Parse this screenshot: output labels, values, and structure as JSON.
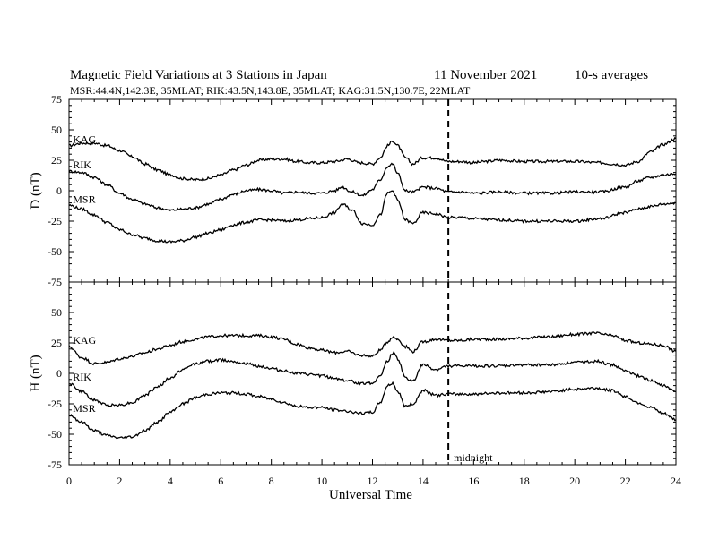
{
  "title_left": "Magnetic Field Variations at 3 Stations in Japan",
  "title_date": "11 November 2021",
  "title_right": "10-s averages",
  "subtitle": "MSR:44.4N,142.3E, 35MLAT;  RIK:43.5N,143.8E, 35MLAT;  KAG:31.5N,130.7E, 22MLAT",
  "chart_data": [
    {
      "type": "line",
      "ylabel": "D (nT)",
      "xlim": [
        0,
        24
      ],
      "ylim": [
        -75,
        75
      ],
      "yticks": [
        -75,
        -50,
        -25,
        0,
        25,
        50,
        75
      ],
      "xticks": [
        0,
        2,
        4,
        6,
        8,
        10,
        12,
        14,
        16,
        18,
        20,
        22,
        24
      ],
      "series": [
        {
          "name": "KAG",
          "x": [
            0,
            0.5,
            1,
            1.5,
            2,
            2.5,
            3,
            3.5,
            4,
            4.5,
            5,
            5.5,
            6,
            6.5,
            7,
            7.5,
            8,
            8.5,
            9,
            9.5,
            10,
            10.5,
            11,
            11.5,
            12,
            12.3,
            12.6,
            12.8,
            13,
            13.3,
            13.6,
            14,
            14.5,
            15,
            15.5,
            16,
            16.5,
            17,
            18,
            19,
            20,
            21,
            21.5,
            22,
            22.5,
            23,
            23.5,
            24
          ],
          "y": [
            37,
            39,
            39,
            37,
            33,
            28,
            22,
            17,
            13,
            10,
            9,
            10,
            13,
            17,
            21,
            25,
            26,
            26,
            24,
            23,
            23,
            24,
            26,
            23,
            22,
            27,
            37,
            41,
            37,
            27,
            22,
            27,
            27,
            24,
            24,
            23,
            24,
            25,
            24,
            24,
            24,
            23,
            22,
            21,
            24,
            32,
            38,
            43
          ]
        },
        {
          "name": "RIK",
          "x": [
            0,
            0.5,
            1,
            1.5,
            2,
            2.5,
            3,
            3.5,
            4,
            4.5,
            5,
            5.5,
            6,
            6.5,
            7,
            7.5,
            8,
            8.5,
            9,
            9.5,
            10,
            10.5,
            10.8,
            11.2,
            11.6,
            12,
            12.3,
            12.6,
            12.8,
            13,
            13.3,
            13.6,
            14,
            14.5,
            15,
            15.5,
            16,
            17,
            18,
            19,
            20,
            21,
            22,
            22.5,
            23,
            23.5,
            24
          ],
          "y": [
            16,
            15,
            11,
            5,
            -2,
            -7,
            -11,
            -14,
            -16,
            -15,
            -14,
            -11,
            -7,
            -3,
            0,
            1,
            0,
            -2,
            -1,
            -2,
            -2,
            0,
            3,
            -1,
            -4,
            1,
            9,
            20,
            22,
            14,
            0,
            -1,
            3,
            2,
            -1,
            -1,
            -2,
            -1,
            -2,
            -2,
            -1,
            -1,
            3,
            8,
            11,
            13,
            14
          ]
        },
        {
          "name": "MSR",
          "x": [
            0,
            0.5,
            1,
            1.5,
            2,
            2.5,
            3,
            3.5,
            4,
            4.5,
            5,
            5.5,
            6,
            6.5,
            7,
            7.5,
            8,
            8.5,
            9,
            9.5,
            10,
            10.5,
            10.8,
            11.2,
            11.6,
            12,
            12.3,
            12.6,
            12.8,
            13,
            13.3,
            13.6,
            14,
            14.5,
            15,
            15.5,
            16,
            17,
            18,
            19,
            20,
            21,
            22,
            22.5,
            23,
            23.5,
            24
          ],
          "y": [
            -12,
            -15,
            -20,
            -26,
            -32,
            -36,
            -39,
            -41,
            -42,
            -41,
            -38,
            -35,
            -32,
            -28,
            -26,
            -24,
            -24,
            -25,
            -24,
            -23,
            -22,
            -18,
            -11,
            -16,
            -27,
            -28,
            -20,
            -2,
            0,
            -8,
            -24,
            -27,
            -18,
            -19,
            -22,
            -22,
            -23,
            -24,
            -25,
            -25,
            -25,
            -23,
            -18,
            -15,
            -13,
            -11,
            -10
          ]
        }
      ]
    },
    {
      "type": "line",
      "ylabel": "H (nT)",
      "xlabel": "Universal Time",
      "xlim": [
        0,
        24
      ],
      "ylim": [
        -75,
        75
      ],
      "yticks": [
        -75,
        -50,
        -25,
        0,
        25,
        50,
        75
      ],
      "xticks": [
        0,
        2,
        4,
        6,
        8,
        10,
        12,
        14,
        16,
        18,
        20,
        22,
        24
      ],
      "series": [
        {
          "name": "KAG",
          "x": [
            0,
            0.5,
            1,
            1.5,
            2,
            2.5,
            3,
            3.5,
            4,
            4.5,
            5,
            5.5,
            6,
            6.5,
            7,
            7.5,
            8,
            8.5,
            9,
            9.5,
            10,
            10.5,
            11,
            11.5,
            12,
            12.3,
            12.6,
            12.8,
            13,
            13.3,
            13.6,
            14,
            14.5,
            15,
            15.5,
            16,
            17,
            18,
            19,
            20,
            20.8,
            21.5,
            22,
            22.5,
            23,
            23.5,
            24
          ],
          "y": [
            22,
            13,
            8,
            9,
            12,
            14,
            17,
            20,
            23,
            26,
            28,
            30,
            31,
            31,
            31,
            31,
            30,
            28,
            24,
            21,
            19,
            17,
            18,
            15,
            14,
            19,
            26,
            30,
            28,
            22,
            18,
            26,
            28,
            27,
            27,
            28,
            28,
            29,
            30,
            32,
            33,
            31,
            27,
            25,
            24,
            23,
            18
          ]
        },
        {
          "name": "RIK",
          "x": [
            0,
            0.5,
            1,
            1.5,
            2,
            2.5,
            3,
            3.5,
            4,
            4.5,
            5,
            5.5,
            6,
            6.5,
            7,
            7.5,
            8,
            8.5,
            9,
            9.5,
            10,
            10.5,
            11,
            11.5,
            12,
            12.3,
            12.6,
            12.8,
            13,
            13.3,
            13.6,
            14,
            14.5,
            15,
            15.5,
            16,
            17,
            18,
            19,
            20,
            20.8,
            21.5,
            22,
            22.5,
            23,
            23.5,
            24
          ],
          "y": [
            -8,
            -15,
            -22,
            -26,
            -26,
            -24,
            -18,
            -11,
            -4,
            3,
            8,
            10,
            11,
            10,
            8,
            6,
            4,
            2,
            0,
            -1,
            -2,
            -4,
            -6,
            -8,
            -8,
            -2,
            10,
            17,
            12,
            -4,
            -6,
            7,
            3,
            6,
            6,
            6,
            6,
            7,
            7,
            9,
            10,
            7,
            2,
            -2,
            -6,
            -10,
            -15
          ]
        },
        {
          "name": "MSR",
          "x": [
            0,
            0.5,
            1,
            1.5,
            2,
            2.5,
            3,
            3.5,
            4,
            4.5,
            5,
            5.5,
            6,
            6.5,
            7,
            7.5,
            8,
            8.5,
            9,
            9.5,
            10,
            10.5,
            11,
            11.5,
            12,
            12.3,
            12.6,
            12.8,
            13,
            13.3,
            13.6,
            14,
            14.5,
            15,
            15.5,
            16,
            17,
            18,
            19,
            20,
            20.8,
            21.5,
            22,
            22.5,
            23,
            23.5,
            24
          ],
          "y": [
            -34,
            -40,
            -47,
            -51,
            -53,
            -52,
            -47,
            -40,
            -32,
            -25,
            -20,
            -17,
            -16,
            -16,
            -17,
            -19,
            -21,
            -24,
            -27,
            -28,
            -28,
            -30,
            -31,
            -33,
            -32,
            -24,
            -10,
            -8,
            -15,
            -27,
            -25,
            -14,
            -18,
            -17,
            -17,
            -17,
            -16,
            -16,
            -15,
            -13,
            -12,
            -14,
            -19,
            -24,
            -28,
            -33,
            -38
          ]
        }
      ]
    }
  ],
  "midnight_label": "midnight",
  "midnight_time": 15
}
